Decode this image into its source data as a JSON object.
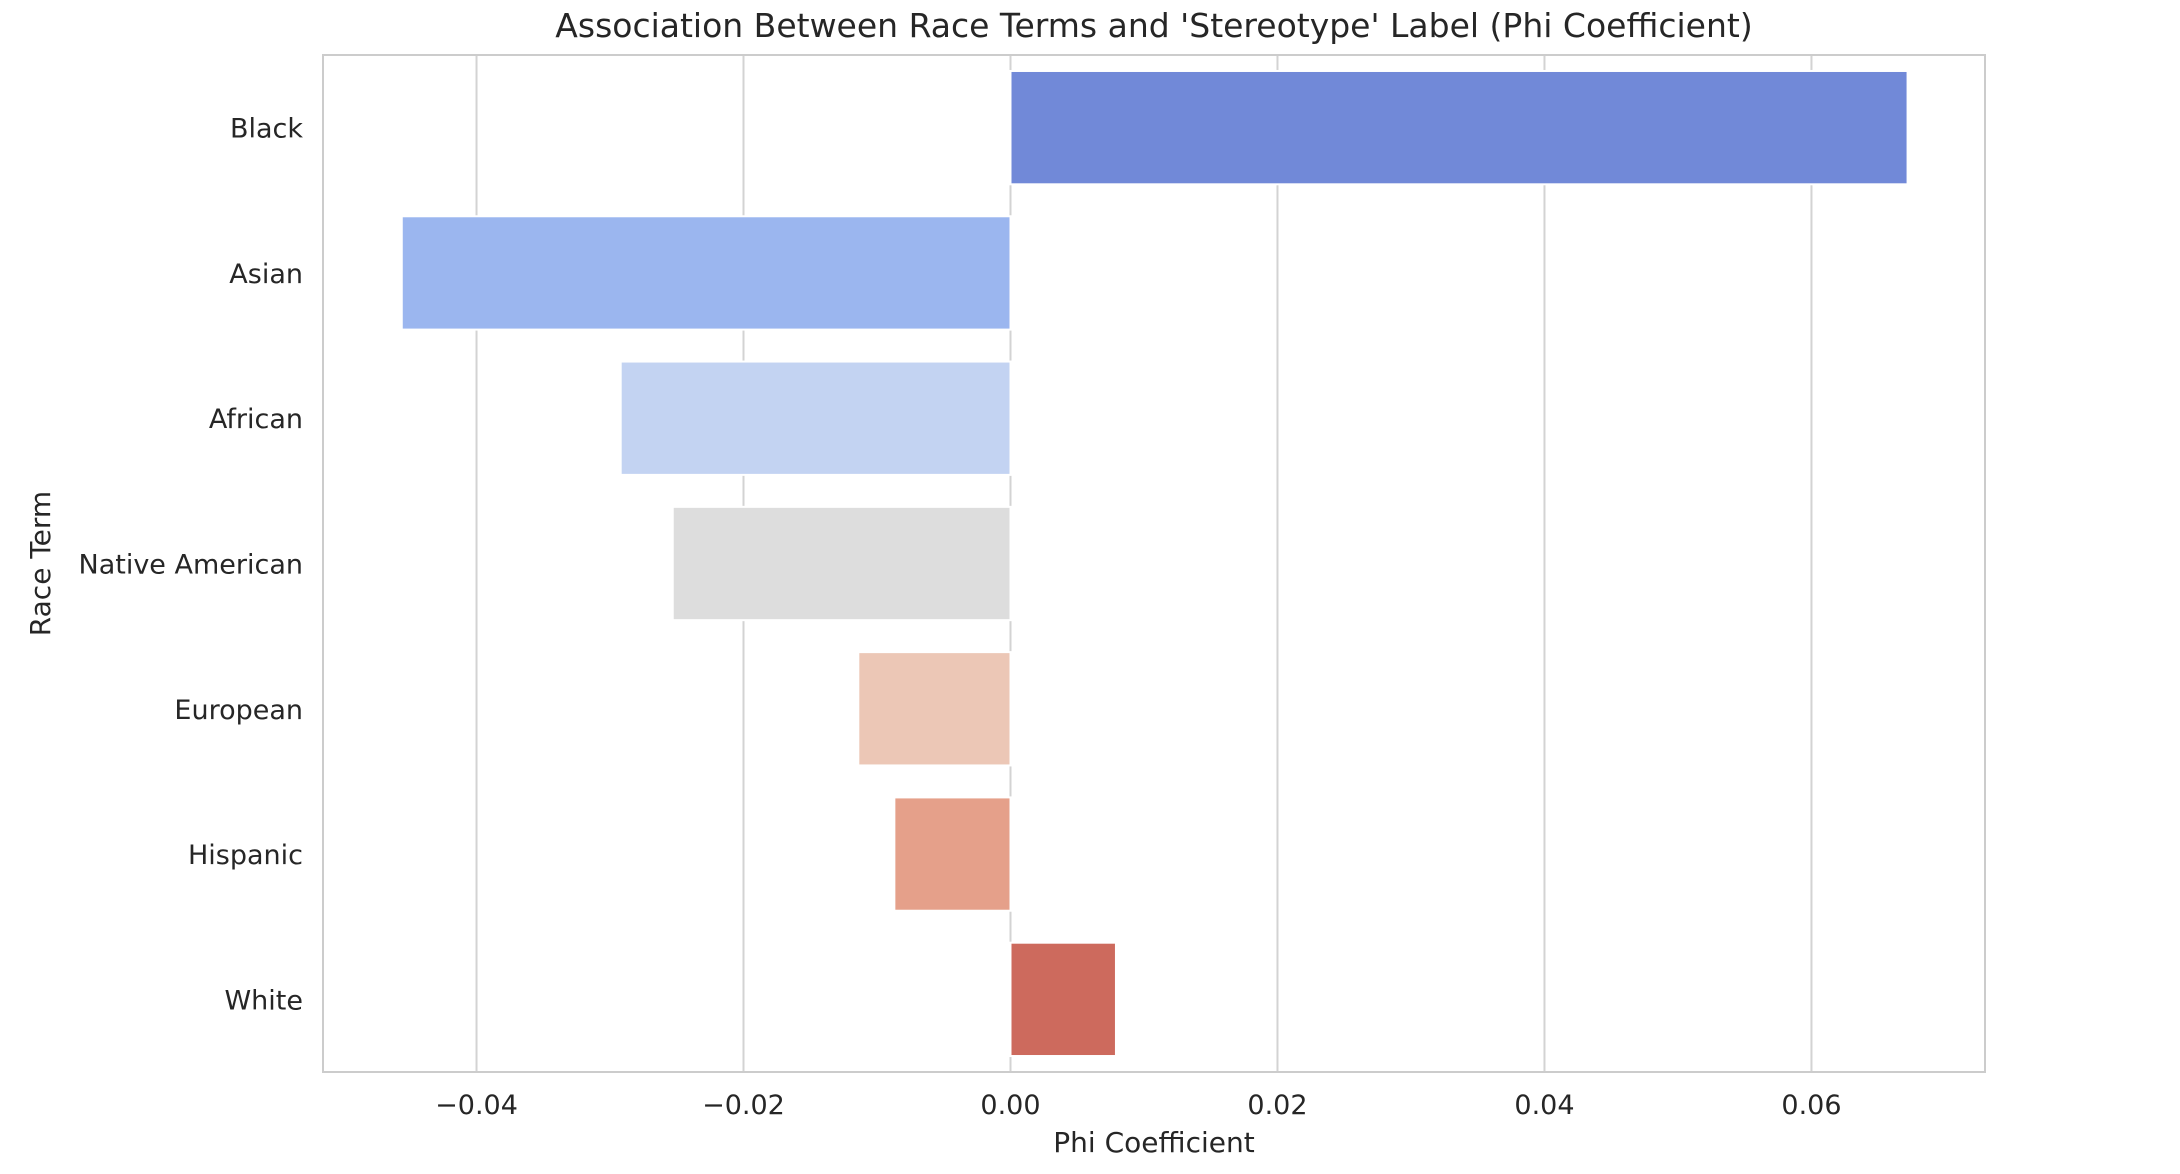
{
  "chart_data": {
    "type": "bar",
    "orientation": "horizontal",
    "title": "Association Between Race Terms and 'Stereotype' Label (Phi Coefficient)",
    "xlabel": "Phi Coefficient",
    "ylabel": "Race Term",
    "categories": [
      "Black",
      "Asian",
      "African",
      "Native American",
      "European",
      "Hispanic",
      "White"
    ],
    "values": [
      0.0672,
      -0.0456,
      -0.0292,
      -0.0253,
      -0.0114,
      -0.0087,
      0.0079
    ],
    "colors": [
      "#7189d8",
      "#9bb6ef",
      "#c3d3f2",
      "#dddddd",
      "#ecc7b6",
      "#e5a08a",
      "#cd6a5d"
    ],
    "xlim": [
      -0.0515,
      0.073
    ],
    "xticks": [
      -0.04,
      -0.02,
      0.0,
      0.02,
      0.04,
      0.06
    ],
    "xtick_labels": [
      "−0.04",
      "−0.02",
      "0.00",
      "0.02",
      "0.04",
      "0.06"
    ],
    "grid": true,
    "legend": "none"
  }
}
